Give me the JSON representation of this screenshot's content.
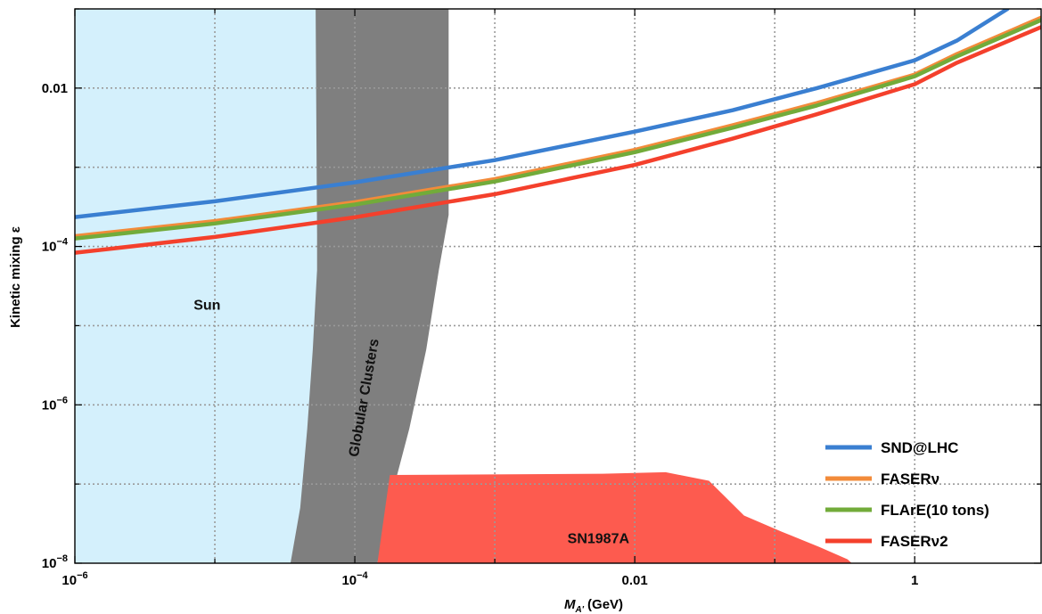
{
  "chart_data": {
    "type": "line",
    "title": "",
    "xlabel_main": "M",
    "xlabel_sub": "A'",
    "xlabel_unit": "(GeV)",
    "ylabel": "Kinetic mixing ε",
    "x_scale": "log",
    "y_scale": "log",
    "xlim": [
      1e-06,
      8
    ],
    "ylim": [
      1e-08,
      0.1
    ],
    "grid": true,
    "legend_position": "bottom-right",
    "x_ticks": [
      {
        "value": 1e-06,
        "base": "10",
        "exp": "−6"
      },
      {
        "value": 0.0001,
        "base": "10",
        "exp": "−4"
      },
      {
        "value": 0.01,
        "label": "0.01"
      },
      {
        "value": 1,
        "label": "1"
      }
    ],
    "y_ticks": [
      {
        "value": 1e-08,
        "base": "10",
        "exp": "−8"
      },
      {
        "value": 1e-06,
        "base": "10",
        "exp": "−6"
      },
      {
        "value": 0.0001,
        "base": "10",
        "exp": "−4"
      },
      {
        "value": 0.01,
        "label": "0.01"
      }
    ],
    "regions": [
      {
        "name": "Sun",
        "label": "Sun",
        "color": "#d4f0fc",
        "label_at": [
          8.8e-06,
          1.6e-05
        ],
        "polygon": [
          [
            1e-06,
            1e-08
          ],
          [
            1e-06,
            0.1
          ],
          [
            5.37e-05,
            0.1
          ],
          [
            5.37e-05,
            1e-08
          ]
        ]
      },
      {
        "name": "Globular Clusters",
        "label": "Globular Clusters",
        "color": "#7f7f7f",
        "label_at": [
          0.000125,
          1.2e-06
        ],
        "label_rotation": -80,
        "polygon": [
          [
            3.47e-05,
            1e-08
          ],
          [
            4.07e-05,
            5e-08
          ],
          [
            4.57e-05,
            5e-07
          ],
          [
            5.01e-05,
            5e-06
          ],
          [
            5.37e-05,
            5e-05
          ],
          [
            5.37e-05,
            0.000141
          ],
          [
            5.25e-05,
            0.1
          ],
          [
            0.000468,
            0.1
          ],
          [
            0.000468,
            0.00025
          ],
          [
            0.000398,
            5e-05
          ],
          [
            0.000324,
            5e-06
          ],
          [
            0.000245,
            5e-07
          ],
          [
            0.000174,
            5e-08
          ],
          [
            0.000145,
            1e-08
          ]
        ]
      },
      {
        "name": "SN1987A",
        "label": "SN1987A",
        "color": "#fd5b4f",
        "label_at": [
          0.0055,
          1.8e-08
        ],
        "polygon": [
          [
            0.000145,
            1e-08
          ],
          [
            0.000178,
            1.3e-07
          ],
          [
            0.0059,
            1.35e-07
          ],
          [
            0.0166,
            1.41e-07
          ],
          [
            0.0339,
            1.1e-07
          ],
          [
            0.0603,
            4e-08
          ],
          [
            0.112,
            2.5e-08
          ],
          [
            0.209,
            1.6e-08
          ],
          [
            0.331,
            1.12e-08
          ],
          [
            0.355,
            1e-08
          ]
        ]
      }
    ],
    "series": [
      {
        "name": "SND@LHC",
        "color": "#3a7fd1",
        "x": [
          1e-06,
          1e-05,
          0.0001,
          0.001,
          0.01,
          0.05,
          0.2,
          1,
          2,
          4.6
        ],
        "y": [
          0.000235,
          0.000372,
          0.000646,
          0.00123,
          0.00282,
          0.00525,
          0.01,
          0.0224,
          0.0398,
          0.1
        ]
      },
      {
        "name": "FASERν",
        "color": "#f28b3a",
        "x": [
          1e-06,
          1e-05,
          0.0001,
          0.001,
          0.01,
          0.05,
          0.2,
          1,
          2,
          8
        ],
        "y": [
          0.000135,
          0.000209,
          0.000363,
          0.000708,
          0.00166,
          0.00339,
          0.00646,
          0.0148,
          0.0269,
          0.0776
        ]
      },
      {
        "name": "FLArE(10 tons)",
        "color": "#72ab3a",
        "x": [
          1e-06,
          1e-05,
          0.0001,
          0.001,
          0.01,
          0.05,
          0.2,
          1,
          2,
          8
        ],
        "y": [
          0.000126,
          0.000195,
          0.000339,
          0.000661,
          0.00155,
          0.00316,
          0.00603,
          0.0141,
          0.0251,
          0.0724
        ]
      },
      {
        "name": "FASERν2",
        "color": "#f4402c",
        "x": [
          1e-06,
          1e-05,
          0.0001,
          0.001,
          0.01,
          0.05,
          0.2,
          1,
          2,
          8
        ],
        "y": [
          8.32e-05,
          0.000132,
          0.000234,
          0.000457,
          0.00107,
          0.0023,
          0.00468,
          0.0112,
          0.0209,
          0.0589
        ]
      }
    ]
  }
}
